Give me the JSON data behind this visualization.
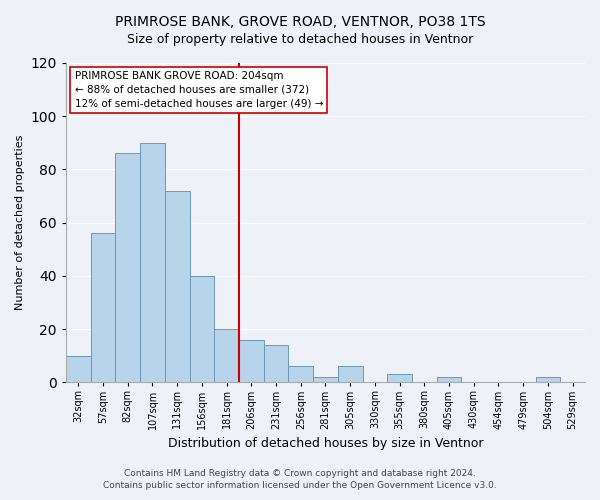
{
  "title": "PRIMROSE BANK, GROVE ROAD, VENTNOR, PO38 1TS",
  "subtitle": "Size of property relative to detached houses in Ventnor",
  "xlabel": "Distribution of detached houses by size in Ventnor",
  "ylabel": "Number of detached properties",
  "bar_labels": [
    "32sqm",
    "57sqm",
    "82sqm",
    "107sqm",
    "131sqm",
    "156sqm",
    "181sqm",
    "206sqm",
    "231sqm",
    "256sqm",
    "281sqm",
    "305sqm",
    "330sqm",
    "355sqm",
    "380sqm",
    "405sqm",
    "430sqm",
    "454sqm",
    "479sqm",
    "504sqm",
    "529sqm"
  ],
  "bar_values": [
    10,
    56,
    86,
    90,
    72,
    40,
    20,
    16,
    14,
    6,
    2,
    6,
    0,
    3,
    0,
    2,
    0,
    0,
    0,
    2,
    0
  ],
  "bar_color": "#b8d4ea",
  "bar_edge_color": "#6699bb",
  "vline_label_index": 7,
  "vline_color": "#cc0000",
  "annotation_line1": "PRIMROSE BANK GROVE ROAD: 204sqm",
  "annotation_line2": "← 88% of detached houses are smaller (372)",
  "annotation_line3": "12% of semi-detached houses are larger (49) →",
  "annotation_box_color": "#ffffff",
  "annotation_box_edge": "#cc0000",
  "ylim": [
    0,
    120
  ],
  "yticks": [
    0,
    20,
    40,
    60,
    80,
    100,
    120
  ],
  "footer_line1": "Contains HM Land Registry data © Crown copyright and database right 2024.",
  "footer_line2": "Contains public sector information licensed under the Open Government Licence v3.0.",
  "background_color": "#eef2f8",
  "plot_background": "#eef2f8",
  "grid_color": "#ffffff",
  "title_fontsize": 10,
  "subtitle_fontsize": 9,
  "ylabel_fontsize": 8,
  "xlabel_fontsize": 9,
  "tick_fontsize": 7,
  "annotation_fontsize": 7.5,
  "footer_fontsize": 6.5
}
